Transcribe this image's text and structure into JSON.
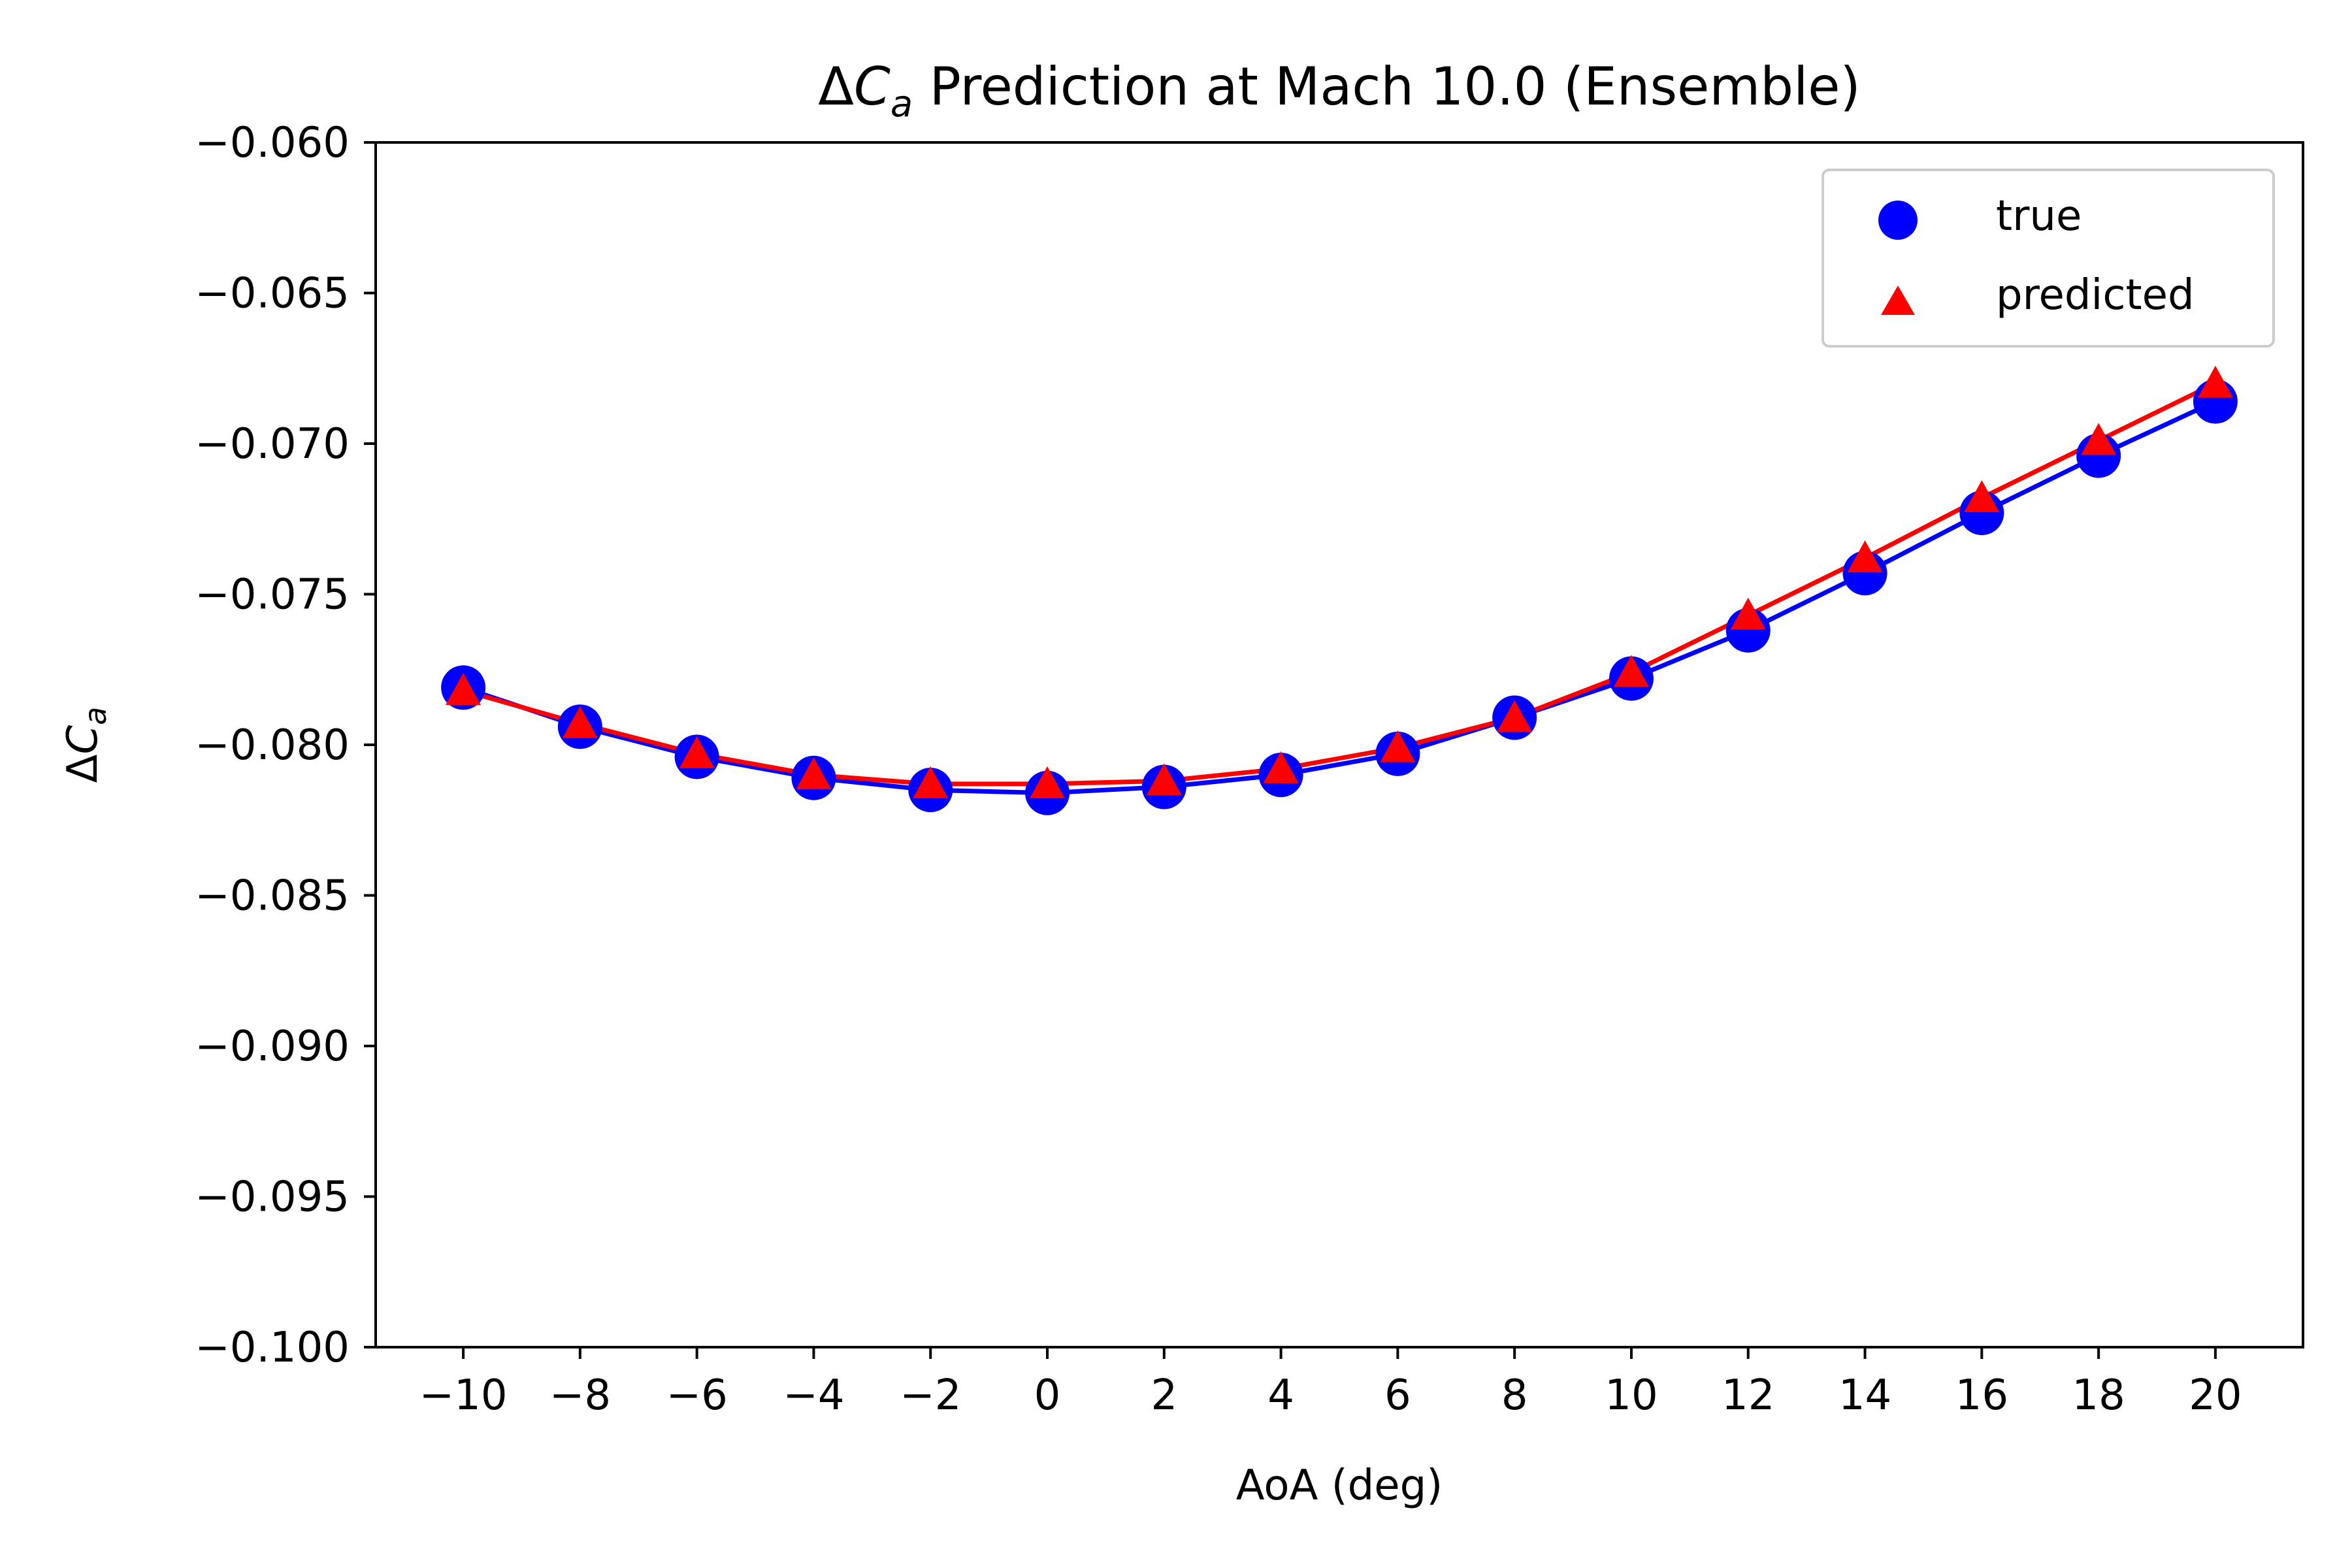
{
  "chart_data": {
    "type": "line",
    "title": {
      "prefix": "Δ",
      "symbol": "C",
      "subscript": "a",
      "rest": " Prediction at Mach 10.0 (Ensemble)"
    },
    "xlabel": "AoA (deg)",
    "ylabel": {
      "prefix": "Δ",
      "symbol": "C",
      "subscript": "a"
    },
    "xlim": [
      -11.5,
      21.5
    ],
    "ylim": [
      -0.1,
      -0.06
    ],
    "x_ticks": [
      -10,
      -8,
      -6,
      -4,
      -2,
      0,
      2,
      4,
      6,
      8,
      10,
      12,
      14,
      16,
      18,
      20
    ],
    "x_tick_labels": [
      "−10",
      "−8",
      "−6",
      "−4",
      "−2",
      "0",
      "2",
      "4",
      "6",
      "8",
      "10",
      "12",
      "14",
      "16",
      "18",
      "20"
    ],
    "y_ticks": [
      -0.06,
      -0.065,
      -0.07,
      -0.075,
      -0.08,
      -0.085,
      -0.09,
      -0.095,
      -0.1
    ],
    "y_tick_labels": [
      "−0.060",
      "−0.065",
      "−0.070",
      "−0.075",
      "−0.080",
      "−0.085",
      "−0.090",
      "−0.095",
      "−0.100"
    ],
    "grid": false,
    "legend_position": "top-right",
    "x": [
      -10,
      -8,
      -6,
      -4,
      -2,
      0,
      2,
      4,
      6,
      8,
      10,
      12,
      14,
      16,
      18,
      20
    ],
    "series": [
      {
        "name": "true",
        "marker": "circle",
        "color": "#0000ff",
        "values": [
          -0.0781,
          -0.0794,
          -0.0804,
          -0.0811,
          -0.0815,
          -0.0816,
          -0.0814,
          -0.081,
          -0.0803,
          -0.0791,
          -0.0778,
          -0.0762,
          -0.0743,
          -0.0723,
          -0.0704,
          -0.0686
        ]
      },
      {
        "name": "predicted",
        "marker": "triangle",
        "color": "#ff0000",
        "values": [
          -0.0782,
          -0.0793,
          -0.0803,
          -0.081,
          -0.0813,
          -0.0813,
          -0.0812,
          -0.0808,
          -0.0801,
          -0.0791,
          -0.0776,
          -0.0757,
          -0.0738,
          -0.0718,
          -0.0699,
          -0.068
        ]
      }
    ]
  }
}
